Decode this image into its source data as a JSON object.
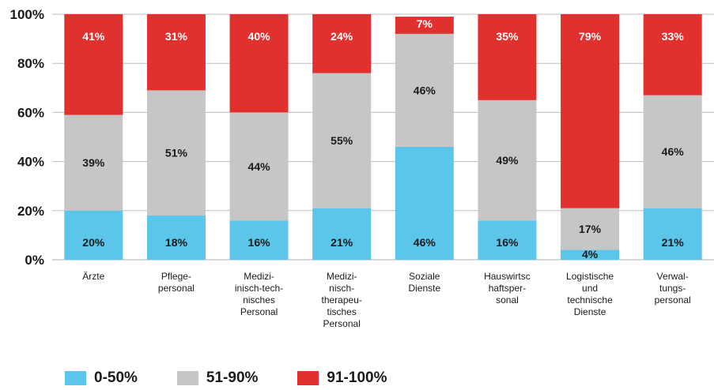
{
  "chart_data": {
    "type": "bar",
    "stacked": true,
    "percent_stacked": true,
    "categories": [
      [
        "Ärzte"
      ],
      [
        "Pflege-",
        "personal"
      ],
      [
        "Medizi-",
        "inisch-tech-",
        "nisches",
        "Personal"
      ],
      [
        "Medizi-",
        "nisch-",
        "therapeu-",
        "tisches",
        "Personal"
      ],
      [
        "Soziale",
        "Dienste"
      ],
      [
        "Hauswirtsc",
        "haftsper-",
        "sonal"
      ],
      [
        "Logistische",
        "und",
        "technische",
        "Dienste"
      ],
      [
        "Verwal-",
        "tungs-",
        "personal"
      ]
    ],
    "series": [
      {
        "name": "0-50%",
        "color": "#5bc5ea",
        "values": [
          20,
          18,
          16,
          21,
          46,
          16,
          4,
          21
        ]
      },
      {
        "name": "51-90%",
        "color": "#c6c6c6",
        "values": [
          39,
          51,
          44,
          55,
          46,
          49,
          17,
          46
        ]
      },
      {
        "name": "91-100%",
        "color": "#e0312f",
        "values": [
          41,
          31,
          40,
          24,
          7,
          35,
          79,
          33
        ]
      }
    ],
    "ylim": [
      0,
      100
    ],
    "yticks": [
      "0%",
      "20%",
      "40%",
      "60%",
      "80%",
      "100%"
    ],
    "grid": true,
    "legend": "bottom-left"
  }
}
